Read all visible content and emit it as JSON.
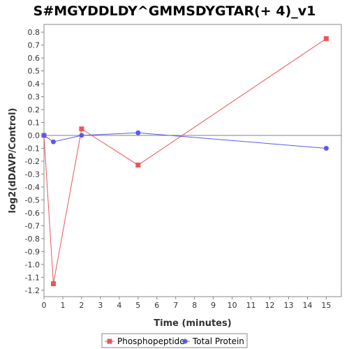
{
  "chart_data": {
    "type": "line",
    "title": "S#MGYDDLDY^GMMSDYGTAR(+ 4)_v1",
    "xlabel": "Time (minutes)",
    "ylabel": "log2(dDAVP/Control)",
    "xlim": [
      0,
      15.8
    ],
    "ylim": [
      -1.25,
      0.86
    ],
    "x_ticks": [
      0,
      1,
      2,
      3,
      4,
      5,
      6,
      7,
      8,
      9,
      10,
      11,
      12,
      13,
      14,
      15
    ],
    "x_tick_labels": [
      "0",
      "1",
      "2",
      "3",
      "4",
      "5",
      "6",
      "7",
      "8",
      "9",
      "10",
      "11",
      "12",
      "13",
      "14",
      "15"
    ],
    "y_ticks": [
      0.8,
      0.7,
      0.6,
      0.5,
      0.4,
      0.3,
      0.2,
      0.1,
      0.0,
      -0.1,
      -0.2,
      -0.3,
      -0.4,
      -0.5,
      -0.6,
      -0.7,
      -0.8,
      -0.9,
      -1.0,
      -1.1,
      -1.2
    ],
    "y_tick_labels": [
      "0.8",
      "0.7",
      "0.6",
      "0.5",
      "0.4",
      "0.3",
      "0.2",
      "0.1",
      "0.0",
      "-0.1",
      "-0.2",
      "-0.3",
      "-0.4",
      "-0.5",
      "-0.6",
      "-0.7",
      "-0.8",
      "-0.9",
      "-1.0",
      "-1.1",
      "-1.2"
    ],
    "grid": false,
    "zero_line": true,
    "legend_position": "bottom",
    "series": [
      {
        "name": "Phosphopeptide",
        "color": "#e8575a",
        "marker": "square",
        "x": [
          0,
          0.5,
          2,
          5,
          15
        ],
        "y": [
          0.0,
          -1.15,
          0.05,
          -0.23,
          0.75
        ]
      },
      {
        "name": "Total Protein",
        "color": "#5a5ae8",
        "marker": "circle",
        "x": [
          0,
          0.5,
          2,
          5,
          15
        ],
        "y": [
          0.0,
          -0.05,
          0.0,
          0.02,
          -0.1
        ]
      }
    ]
  }
}
